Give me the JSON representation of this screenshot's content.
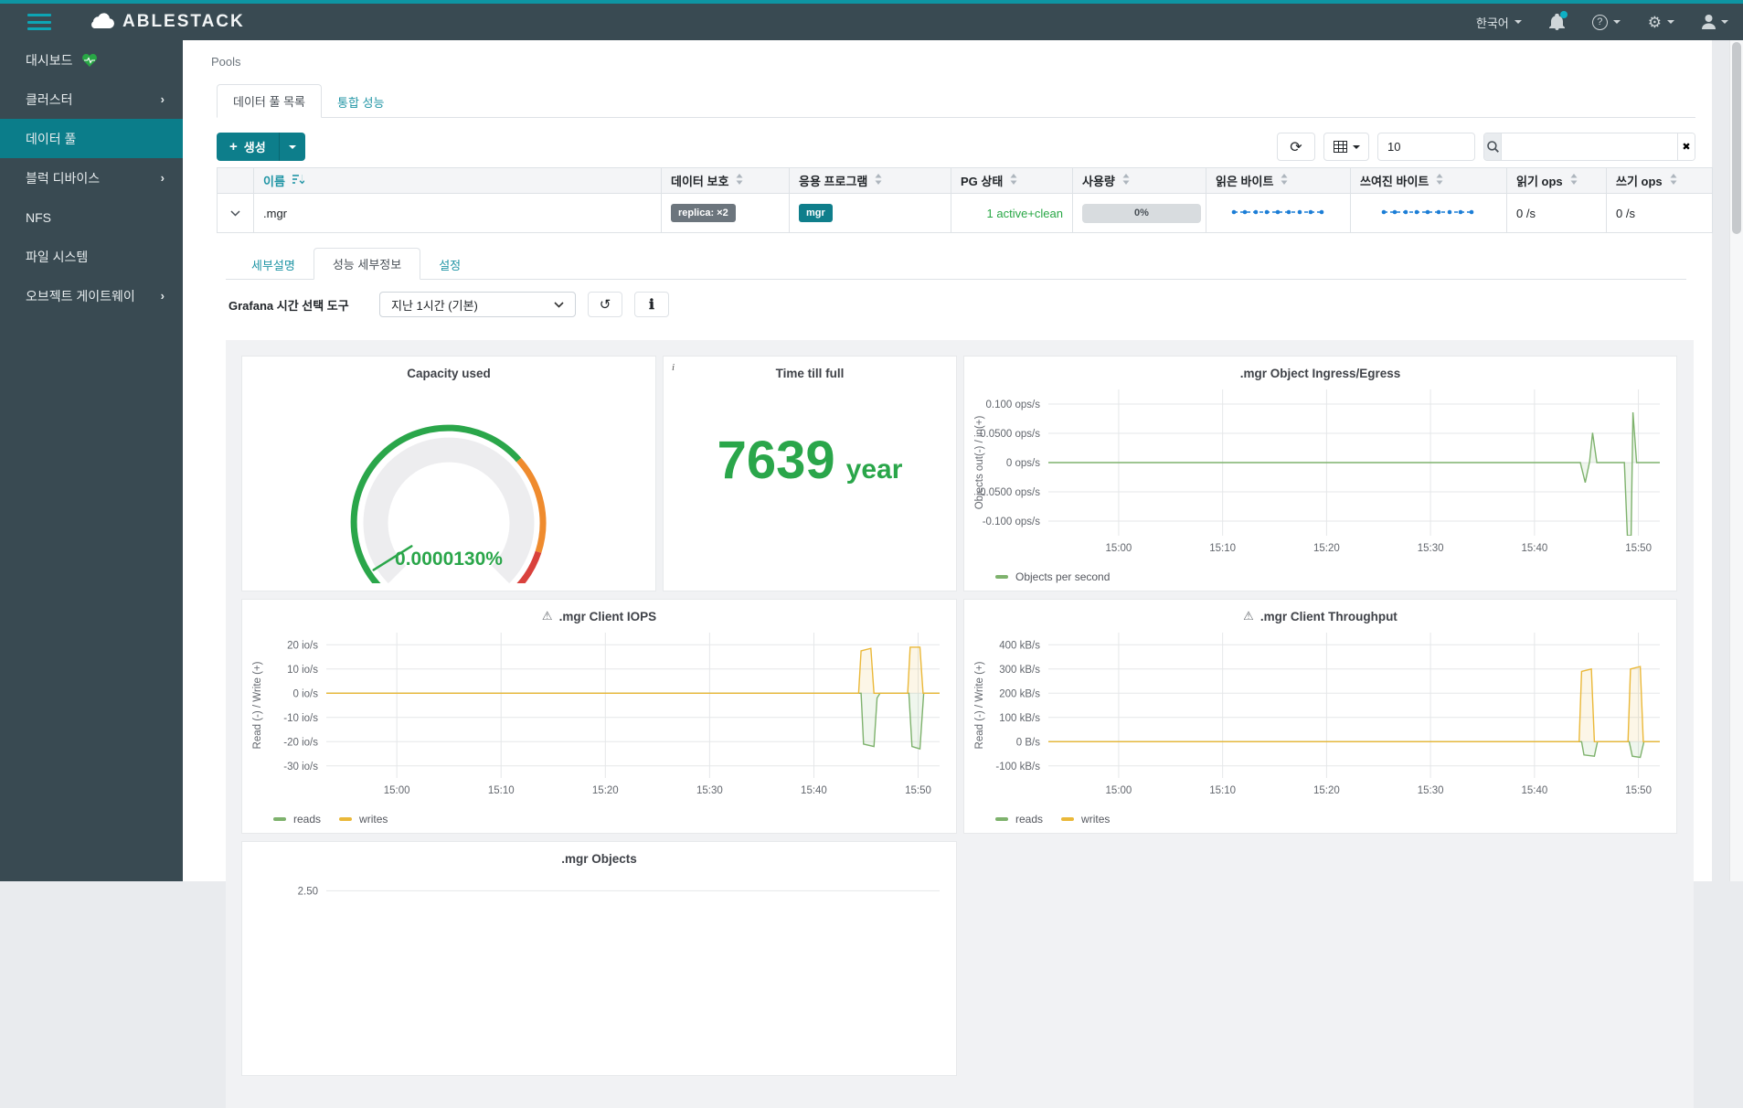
{
  "navbar": {
    "brand": "ABLESTACK",
    "language": "한국어",
    "icons": [
      "notifications-bell",
      "help",
      "settings-gear",
      "user"
    ]
  },
  "sidebar": {
    "items": [
      {
        "label": "대시보드",
        "icon": "health-heart",
        "chevron": false,
        "active": false
      },
      {
        "label": "클러스터",
        "chevron": true,
        "active": false
      },
      {
        "label": "데이터 풀",
        "chevron": false,
        "active": true
      },
      {
        "label": "블럭 디바이스",
        "chevron": true,
        "active": false
      },
      {
        "label": "NFS",
        "chevron": false,
        "active": false
      },
      {
        "label": "파일 시스템",
        "chevron": false,
        "active": false
      },
      {
        "label": "오브젝트 게이트웨이",
        "chevron": true,
        "active": false
      }
    ]
  },
  "breadcrumb": "Pools",
  "tabs": [
    {
      "label": "데이터 풀 목록",
      "active": true
    },
    {
      "label": "통합 성능",
      "active": false
    }
  ],
  "toolbar": {
    "create_label": "생성",
    "page_size": "10",
    "search_value": ""
  },
  "table": {
    "columns": [
      {
        "label": "이름",
        "sort": "sorted"
      },
      {
        "label": "데이터 보호",
        "sort": "sortable"
      },
      {
        "label": "응용 프로그램",
        "sort": "sortable"
      },
      {
        "label": "PG 상태",
        "sort": "sortable"
      },
      {
        "label": "사용량",
        "sort": "sortable"
      },
      {
        "label": "읽은 바이트",
        "sort": "sortable"
      },
      {
        "label": "쓰여진 바이트",
        "sort": "sortable"
      },
      {
        "label": "읽기 ops",
        "sort": "sortable"
      },
      {
        "label": "쓰기 ops",
        "sort": "sortable"
      }
    ],
    "row": {
      "name": ".mgr",
      "protection_badge": "replica: ×2",
      "application_badge": "mgr",
      "pg_status": "1 active+clean",
      "usage": "0%",
      "read_ops": "0 /s",
      "write_ops": "0 /s"
    }
  },
  "detail_tabs": [
    {
      "label": "세부설명",
      "active": false
    },
    {
      "label": "성능 세부정보",
      "active": true
    },
    {
      "label": "설정",
      "active": false
    }
  ],
  "grafana": {
    "time_picker_label": "Grafana 시간 선택 도구",
    "time_picker_value": "지난 1시간 (기본)"
  },
  "colors": {
    "accent_teal": "#0d7e8b",
    "link_teal": "#2095a5",
    "status_green": "#28a745",
    "gauge_green": "#2aa64a",
    "gauge_orange": "#ef8b2e",
    "gauge_red": "#d9413c",
    "series_green": "#7eb26d",
    "series_orange": "#eab839",
    "sparkline_blue": "#1c7ed6"
  },
  "chart_data": [
    {
      "type": "gauge",
      "title": "Capacity used",
      "value_label": "0.0000130%",
      "value_percent": 1.3e-05,
      "segments": [
        {
          "color": "#2aa64a",
          "to": 0.678
        },
        {
          "color": "#ef8b2e",
          "to": 0.9
        },
        {
          "color": "#d9413c",
          "to": 1.0
        }
      ]
    },
    {
      "type": "stat",
      "title": "Time till full",
      "corner_icon": "i",
      "value": "7639",
      "unit": "year"
    },
    {
      "type": "line",
      "title": ".mgr Object Ingress/Egress",
      "warning": false,
      "ylabel": "Objects out(-) / in(+)",
      "ylim": [
        -0.125,
        0.125
      ],
      "yticks": [
        {
          "v": 0.1,
          "label": "0.100 ops/s"
        },
        {
          "v": 0.05,
          "label": "0.0500 ops/s"
        },
        {
          "v": 0,
          "label": "0 ops/s"
        },
        {
          "v": -0.05,
          "label": "-0.0500 ops/s"
        },
        {
          "v": -0.1,
          "label": "-0.100 ops/s"
        }
      ],
      "xticks": [
        "15:00",
        "15:10",
        "15:20",
        "15:30",
        "15:40",
        "15:50"
      ],
      "xtick_pos": [
        0.115,
        0.285,
        0.455,
        0.625,
        0.795,
        0.965
      ],
      "legend": [
        {
          "label": "Objects per second",
          "color": "#7eb26d"
        }
      ],
      "series": [
        {
          "name": "Objects per second",
          "color": "#7eb26d",
          "points": [
            [
              0,
              0
            ],
            [
              0.87,
              0
            ],
            [
              0.878,
              -0.034
            ],
            [
              0.885,
              0.001
            ],
            [
              0.89,
              0.051
            ],
            [
              0.897,
              0
            ],
            [
              0.942,
              0
            ],
            [
              0.947,
              -0.125
            ],
            [
              0.953,
              -0.125
            ],
            [
              0.956,
              0.086
            ],
            [
              0.962,
              0
            ],
            [
              1,
              0
            ]
          ]
        }
      ]
    },
    {
      "type": "line",
      "title": ".mgr Client IOPS",
      "warning": true,
      "ylabel": "Read (-) / Write (+)",
      "ylim": [
        -35,
        25
      ],
      "yticks": [
        {
          "v": 20,
          "label": "20 io/s"
        },
        {
          "v": 10,
          "label": "10 io/s"
        },
        {
          "v": 0,
          "label": "0 io/s"
        },
        {
          "v": -10,
          "label": "-10 io/s"
        },
        {
          "v": -20,
          "label": "-20 io/s"
        },
        {
          "v": -30,
          "label": "-30 io/s"
        }
      ],
      "xticks": [
        "15:00",
        "15:10",
        "15:20",
        "15:30",
        "15:40",
        "15:50"
      ],
      "xtick_pos": [
        0.115,
        0.285,
        0.455,
        0.625,
        0.795,
        0.965
      ],
      "legend": [
        {
          "label": "reads",
          "color": "#7eb26d"
        },
        {
          "label": "writes",
          "color": "#eab839"
        }
      ],
      "series": [
        {
          "name": "reads",
          "color": "#7eb26d",
          "points": [
            [
              0,
              0
            ],
            [
              0.872,
              0
            ],
            [
              0.876,
              -21
            ],
            [
              0.893,
              -22
            ],
            [
              0.898,
              -2
            ],
            [
              0.903,
              0
            ],
            [
              0.95,
              0
            ],
            [
              0.955,
              -22
            ],
            [
              0.968,
              -23
            ],
            [
              0.974,
              0
            ],
            [
              1,
              0
            ]
          ]
        },
        {
          "name": "writes",
          "color": "#eab839",
          "points": [
            [
              0,
              0
            ],
            [
              0.868,
              0
            ],
            [
              0.872,
              17.5
            ],
            [
              0.888,
              18.5
            ],
            [
              0.893,
              0
            ],
            [
              0.948,
              0
            ],
            [
              0.952,
              19
            ],
            [
              0.968,
              19
            ],
            [
              0.973,
              0
            ],
            [
              1,
              0
            ]
          ]
        }
      ]
    },
    {
      "type": "line",
      "title": ".mgr Client Throughput",
      "warning": true,
      "ylabel": "Read (-) / Write (+)",
      "ylim": [
        -150,
        450
      ],
      "yticks": [
        {
          "v": 400,
          "label": "400 kB/s"
        },
        {
          "v": 300,
          "label": "300 kB/s"
        },
        {
          "v": 200,
          "label": "200 kB/s"
        },
        {
          "v": 100,
          "label": "100 kB/s"
        },
        {
          "v": 0,
          "label": "0 B/s"
        },
        {
          "v": -100,
          "label": "-100 kB/s"
        }
      ],
      "xticks": [
        "15:00",
        "15:10",
        "15:20",
        "15:30",
        "15:40",
        "15:50"
      ],
      "xtick_pos": [
        0.115,
        0.285,
        0.455,
        0.625,
        0.795,
        0.965
      ],
      "legend": [
        {
          "label": "reads",
          "color": "#7eb26d"
        },
        {
          "label": "writes",
          "color": "#eab839"
        }
      ],
      "series": [
        {
          "name": "reads",
          "color": "#7eb26d",
          "points": [
            [
              0,
              0
            ],
            [
              0.872,
              0
            ],
            [
              0.876,
              -55
            ],
            [
              0.893,
              -60
            ],
            [
              0.898,
              0
            ],
            [
              0.95,
              0
            ],
            [
              0.955,
              -60
            ],
            [
              0.968,
              -65
            ],
            [
              0.974,
              0
            ],
            [
              1,
              0
            ]
          ]
        },
        {
          "name": "writes",
          "color": "#eab839",
          "points": [
            [
              0,
              0
            ],
            [
              0.868,
              0
            ],
            [
              0.872,
              290
            ],
            [
              0.888,
              300
            ],
            [
              0.893,
              0
            ],
            [
              0.948,
              0
            ],
            [
              0.952,
              300
            ],
            [
              0.968,
              310
            ],
            [
              0.973,
              0
            ],
            [
              1,
              0
            ]
          ]
        }
      ]
    },
    {
      "type": "line",
      "title": ".mgr Objects",
      "warning": false,
      "ylabel": "",
      "ylim": [
        0,
        2.75
      ],
      "yticks": [
        {
          "v": 2.5,
          "label": "2.50"
        }
      ],
      "xticks": [],
      "xtick_pos": [],
      "legend": [],
      "series": []
    }
  ]
}
